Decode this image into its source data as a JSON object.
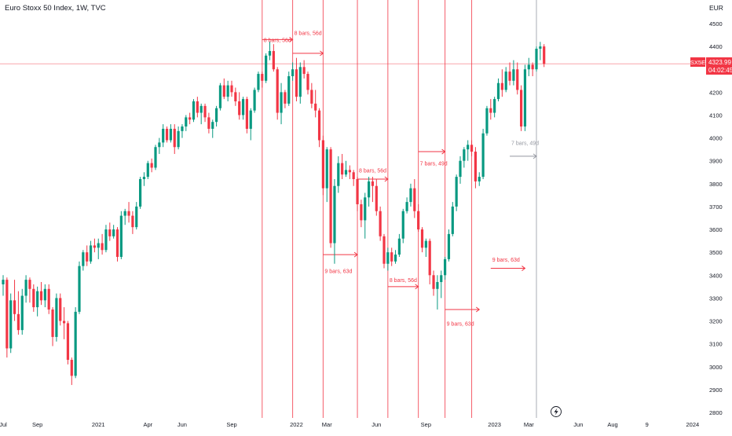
{
  "header": {
    "title": "Euro Stoxx 50 Index, 1W, TVC",
    "currency": "EUR"
  },
  "price_badge": {
    "symbol": "SX5E",
    "price": "4323.99",
    "countdown": "04:02:45"
  },
  "colors": {
    "up": "#089981",
    "down": "#f23645",
    "annotation": "#f23645",
    "annotation_gray": "#9598a1",
    "axis_text": "#131722"
  },
  "icons": [
    "tradingview-bolt-icon"
  ],
  "chart_data": {
    "type": "candlestick",
    "title": "Euro Stoxx 50 Index, 1W, TVC",
    "interval": "1W",
    "source": "TVC",
    "currency": "EUR",
    "ylim": [
      2800,
      4600
    ],
    "y_ticks": [
      2800,
      2900,
      3000,
      3100,
      3200,
      3300,
      3400,
      3500,
      3600,
      3700,
      3800,
      3900,
      4000,
      4100,
      4200,
      4300,
      4400,
      4500
    ],
    "x_ticks": [
      {
        "label": "Jul",
        "week": 0
      },
      {
        "label": "Sep",
        "week": 9
      },
      {
        "label": "2021",
        "week": 25
      },
      {
        "label": "Apr",
        "week": 38
      },
      {
        "label": "Jun",
        "week": 47
      },
      {
        "label": "Sep",
        "week": 60
      },
      {
        "label": "2022",
        "week": 77
      },
      {
        "label": "Mar",
        "week": 85
      },
      {
        "label": "Jun",
        "week": 98
      },
      {
        "label": "Sep",
        "week": 111
      },
      {
        "label": "2023",
        "week": 129
      },
      {
        "label": "Mar",
        "week": 138
      },
      {
        "label": "Jun",
        "week": 151
      },
      {
        "label": "Aug",
        "week": 160
      },
      {
        "label": "9",
        "week": 169
      },
      {
        "label": "2024",
        "week": 181
      }
    ],
    "last_price": 4323.99,
    "candles": [
      [
        3360,
        3400,
        3310,
        3380
      ],
      [
        3380,
        3390,
        3040,
        3080
      ],
      [
        3080,
        3320,
        3060,
        3290
      ],
      [
        3290,
        3380,
        3200,
        3230
      ],
      [
        3230,
        3330,
        3140,
        3160
      ],
      [
        3160,
        3340,
        3140,
        3310
      ],
      [
        3310,
        3400,
        3280,
        3380
      ],
      [
        3380,
        3390,
        3280,
        3340
      ],
      [
        3340,
        3360,
        3240,
        3260
      ],
      [
        3260,
        3350,
        3220,
        3330
      ],
      [
        3330,
        3370,
        3270,
        3290
      ],
      [
        3290,
        3360,
        3260,
        3340
      ],
      [
        3340,
        3360,
        3230,
        3250
      ],
      [
        3250,
        3260,
        3090,
        3130
      ],
      [
        3130,
        3320,
        3110,
        3300
      ],
      [
        3300,
        3320,
        3180,
        3200
      ],
      [
        3200,
        3260,
        3120,
        3190
      ],
      [
        3190,
        3200,
        3010,
        3030
      ],
      [
        3030,
        3040,
        2920,
        2960
      ],
      [
        2960,
        3260,
        2950,
        3240
      ],
      [
        3240,
        3460,
        3230,
        3440
      ],
      [
        3440,
        3510,
        3420,
        3500
      ],
      [
        3500,
        3530,
        3440,
        3460
      ],
      [
        3460,
        3550,
        3450,
        3530
      ],
      [
        3530,
        3560,
        3500,
        3520
      ],
      [
        3520,
        3560,
        3470,
        3540
      ],
      [
        3540,
        3580,
        3490,
        3510
      ],
      [
        3510,
        3620,
        3500,
        3600
      ],
      [
        3600,
        3630,
        3550,
        3570
      ],
      [
        3570,
        3620,
        3560,
        3600
      ],
      [
        3600,
        3610,
        3460,
        3480
      ],
      [
        3480,
        3680,
        3470,
        3660
      ],
      [
        3660,
        3690,
        3620,
        3680
      ],
      [
        3680,
        3720,
        3630,
        3660
      ],
      [
        3660,
        3680,
        3580,
        3610
      ],
      [
        3610,
        3720,
        3600,
        3700
      ],
      [
        3700,
        3830,
        3690,
        3820
      ],
      [
        3820,
        3850,
        3790,
        3830
      ],
      [
        3830,
        3900,
        3820,
        3890
      ],
      [
        3890,
        3910,
        3850,
        3870
      ],
      [
        3870,
        3970,
        3860,
        3960
      ],
      [
        3960,
        4000,
        3930,
        3980
      ],
      [
        3980,
        4060,
        3960,
        4040
      ],
      [
        4040,
        4050,
        3980,
        3990
      ],
      [
        3990,
        4060,
        3980,
        4040
      ],
      [
        4040,
        4060,
        3930,
        3960
      ],
      [
        3960,
        4050,
        3950,
        4030
      ],
      [
        4030,
        4060,
        4000,
        4050
      ],
      [
        4050,
        4100,
        4030,
        4090
      ],
      [
        4090,
        4110,
        4060,
        4080
      ],
      [
        4080,
        4170,
        4070,
        4160
      ],
      [
        4160,
        4180,
        4090,
        4110
      ],
      [
        4110,
        4150,
        4060,
        4140
      ],
      [
        4140,
        4150,
        4070,
        4090
      ],
      [
        4090,
        4110,
        4020,
        4040
      ],
      [
        4040,
        4080,
        4000,
        4070
      ],
      [
        4070,
        4140,
        4050,
        4130
      ],
      [
        4130,
        4240,
        4120,
        4230
      ],
      [
        4230,
        4260,
        4170,
        4180
      ],
      [
        4180,
        4250,
        4160,
        4230
      ],
      [
        4230,
        4250,
        4180,
        4200
      ],
      [
        4200,
        4220,
        4140,
        4160
      ],
      [
        4160,
        4200,
        4080,
        4100
      ],
      [
        4100,
        4180,
        4080,
        4170
      ],
      [
        4170,
        4180,
        4020,
        4040
      ],
      [
        4040,
        4130,
        3990,
        4120
      ],
      [
        4120,
        4220,
        4110,
        4210
      ],
      [
        4210,
        4290,
        4200,
        4280
      ],
      [
        4280,
        4290,
        4220,
        4250
      ],
      [
        4250,
        4370,
        4240,
        4360
      ],
      [
        4360,
        4420,
        4340,
        4380
      ],
      [
        4380,
        4410,
        4290,
        4300
      ],
      [
        4300,
        4310,
        4080,
        4110
      ],
      [
        4110,
        4240,
        4060,
        4200
      ],
      [
        4200,
        4210,
        4130,
        4150
      ],
      [
        4150,
        4290,
        4140,
        4270
      ],
      [
        4270,
        4330,
        4250,
        4300
      ],
      [
        4300,
        4350,
        4160,
        4180
      ],
      [
        4180,
        4330,
        4150,
        4310
      ],
      [
        4310,
        4340,
        4260,
        4280
      ],
      [
        4280,
        4290,
        4190,
        4210
      ],
      [
        4210,
        4240,
        4130,
        4150
      ],
      [
        4150,
        4210,
        4090,
        4120
      ],
      [
        4120,
        4130,
        3960,
        3990
      ],
      [
        3990,
        4010,
        3750,
        3780
      ],
      [
        3780,
        3960,
        3720,
        3950
      ],
      [
        3950,
        3960,
        3520,
        3540
      ],
      [
        3540,
        3820,
        3450,
        3790
      ],
      [
        3790,
        3920,
        3760,
        3890
      ],
      [
        3890,
        3930,
        3820,
        3840
      ],
      [
        3840,
        3900,
        3830,
        3860
      ],
      [
        3860,
        3880,
        3820,
        3850
      ],
      [
        3850,
        3860,
        3790,
        3820
      ],
      [
        3820,
        3830,
        3680,
        3710
      ],
      [
        3710,
        3730,
        3610,
        3640
      ],
      [
        3640,
        3760,
        3560,
        3740
      ],
      [
        3740,
        3830,
        3700,
        3810
      ],
      [
        3810,
        3830,
        3720,
        3790
      ],
      [
        3790,
        3820,
        3660,
        3680
      ],
      [
        3680,
        3700,
        3550,
        3570
      ],
      [
        3570,
        3580,
        3430,
        3450
      ],
      [
        3450,
        3520,
        3420,
        3500
      ],
      [
        3500,
        3520,
        3440,
        3460
      ],
      [
        3460,
        3510,
        3450,
        3490
      ],
      [
        3490,
        3580,
        3480,
        3560
      ],
      [
        3560,
        3690,
        3540,
        3680
      ],
      [
        3680,
        3740,
        3670,
        3720
      ],
      [
        3720,
        3800,
        3700,
        3780
      ],
      [
        3780,
        3820,
        3650,
        3680
      ],
      [
        3680,
        3710,
        3590,
        3600
      ],
      [
        3600,
        3610,
        3500,
        3520
      ],
      [
        3520,
        3560,
        3480,
        3550
      ],
      [
        3550,
        3560,
        3360,
        3400
      ],
      [
        3400,
        3420,
        3310,
        3340
      ],
      [
        3340,
        3400,
        3250,
        3370
      ],
      [
        3370,
        3420,
        3300,
        3400
      ],
      [
        3400,
        3480,
        3380,
        3470
      ],
      [
        3470,
        3600,
        3460,
        3580
      ],
      [
        3580,
        3720,
        3570,
        3700
      ],
      [
        3700,
        3840,
        3680,
        3830
      ],
      [
        3830,
        3920,
        3800,
        3900
      ],
      [
        3900,
        3960,
        3870,
        3950
      ],
      [
        3950,
        3990,
        3900,
        3970
      ],
      [
        3970,
        3990,
        3920,
        3940
      ],
      [
        3940,
        3960,
        3780,
        3810
      ],
      [
        3810,
        3850,
        3790,
        3830
      ],
      [
        3830,
        4040,
        3820,
        4020
      ],
      [
        4020,
        4140,
        4010,
        4130
      ],
      [
        4130,
        4170,
        4080,
        4110
      ],
      [
        4110,
        4180,
        4090,
        4170
      ],
      [
        4170,
        4260,
        4160,
        4240
      ],
      [
        4240,
        4300,
        4180,
        4210
      ],
      [
        4210,
        4310,
        4200,
        4290
      ],
      [
        4290,
        4330,
        4230,
        4250
      ],
      [
        4250,
        4340,
        4230,
        4300
      ],
      [
        4300,
        4330,
        4190,
        4210
      ],
      [
        4210,
        4230,
        4030,
        4050
      ],
      [
        4050,
        4320,
        4030,
        4300
      ],
      [
        4300,
        4350,
        4270,
        4320
      ],
      [
        4320,
        4330,
        4270,
        4300
      ],
      [
        4300,
        4400,
        4290,
        4390
      ],
      [
        4390,
        4420,
        4340,
        4400
      ],
      [
        4400,
        4410,
        4310,
        4323.99
      ]
    ],
    "vertical_lines": [
      {
        "week": 68,
        "color": "#f23645"
      },
      {
        "week": 76,
        "color": "#f23645"
      },
      {
        "week": 84,
        "color": "#f23645"
      },
      {
        "week": 93,
        "color": "#f23645"
      },
      {
        "week": 101,
        "color": "#f23645"
      },
      {
        "week": 109,
        "color": "#f23645"
      },
      {
        "week": 116,
        "color": "#f23645"
      },
      {
        "week": 123,
        "color": "#f23645"
      },
      {
        "week": 140,
        "color": "#9598a1"
      }
    ],
    "measurements": [
      {
        "label": "8 bars, 56d",
        "w0": 68,
        "w1": 76,
        "price": 4430,
        "label_price": 4430,
        "color": "#f23645"
      },
      {
        "label": "8 bars, 56d",
        "w0": 76,
        "w1": 84,
        "price": 4370,
        "label_price": 4460,
        "color": "#f23645"
      },
      {
        "label": "9 bars, 63d",
        "w0": 84,
        "w1": 93,
        "price": 3490,
        "label_price": 3420,
        "color": "#f23645"
      },
      {
        "label": "8 bars, 56d",
        "w0": 93,
        "w1": 101,
        "price": 3820,
        "label_price": 3860,
        "color": "#f23645"
      },
      {
        "label": "8 bars, 56d",
        "w0": 101,
        "w1": 109,
        "price": 3350,
        "label_price": 3380,
        "color": "#f23645"
      },
      {
        "label": "7 bars, 49d",
        "w0": 109,
        "w1": 116,
        "price": 3940,
        "label_price": 3890,
        "color": "#f23645"
      },
      {
        "label": "9 bars, 63d",
        "w0": 116,
        "w1": 125,
        "price": 3250,
        "label_price": 3190,
        "color": "#f23645"
      },
      {
        "label": "9 bars, 63d",
        "w0": 128,
        "w1": 137,
        "price": 3430,
        "label_price": 3470,
        "color": "#f23645"
      },
      {
        "label": "7 bars, 49d",
        "w0": 133,
        "w1": 140,
        "price": 3920,
        "label_price": 3980,
        "color": "#9598a1"
      }
    ]
  }
}
